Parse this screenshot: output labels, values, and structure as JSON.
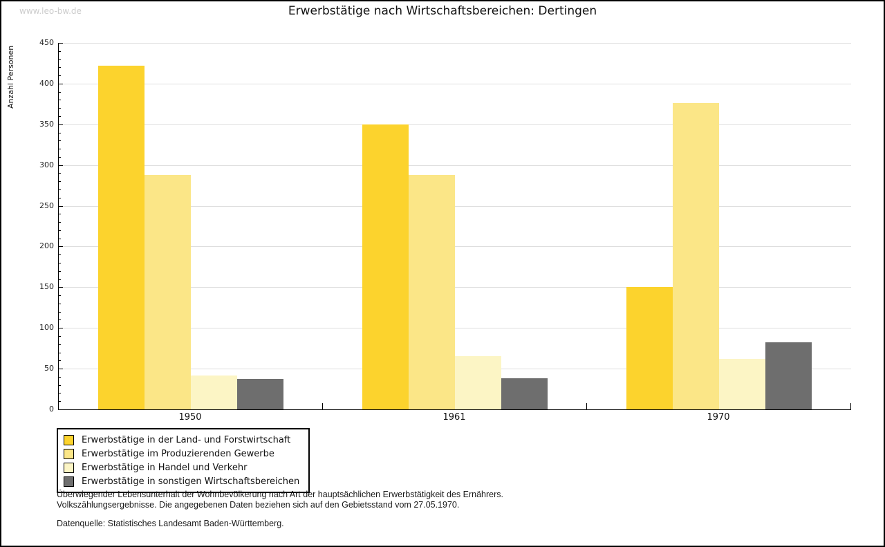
{
  "watermark": "www.leo-bw.de",
  "title": "Erwerbstätige nach Wirtschaftsbereichen: Dertingen",
  "chart_data": {
    "type": "bar",
    "title": "Erwerbstätige nach Wirtschaftsbereichen: Dertingen",
    "xlabel": "",
    "ylabel": "Anzahl Personen",
    "categories": [
      "1950",
      "1961",
      "1970"
    ],
    "series": [
      {
        "name": "Erwerbstätige in der Land- und Forstwirtschaft",
        "color": "#FCD32D",
        "values": [
          422,
          350,
          150
        ]
      },
      {
        "name": "Erwerbstätige im Produzierenden Gewerbe",
        "color": "#FBE687",
        "values": [
          288,
          288,
          376
        ]
      },
      {
        "name": "Erwerbstätige in Handel und Verkehr",
        "color": "#FCF5C5",
        "values": [
          42,
          65,
          62
        ]
      },
      {
        "name": "Erwerbstätige in sonstigen Wirtschaftsbereichen",
        "color": "#6E6E6E",
        "values": [
          37,
          38,
          82
        ]
      }
    ],
    "ylim": [
      0,
      450
    ],
    "ytick_step": 50,
    "yminor_step": 10,
    "grid": true,
    "gridline_color": "#dedede",
    "legend_position": "bottom-left"
  },
  "footer": {
    "line1": "Überwiegender Lebensunterhalt der Wohnbevölkerung nach Art der hauptsächlichen Erwerbstätigkeit des Ernährers.",
    "line2": "Volkszählungsergebnisse. Die angegebenen Daten beziehen sich auf den Gebietsstand vom 27.05.1970.",
    "source": "Datenquelle: Statistisches Landesamt Baden-Württemberg."
  }
}
